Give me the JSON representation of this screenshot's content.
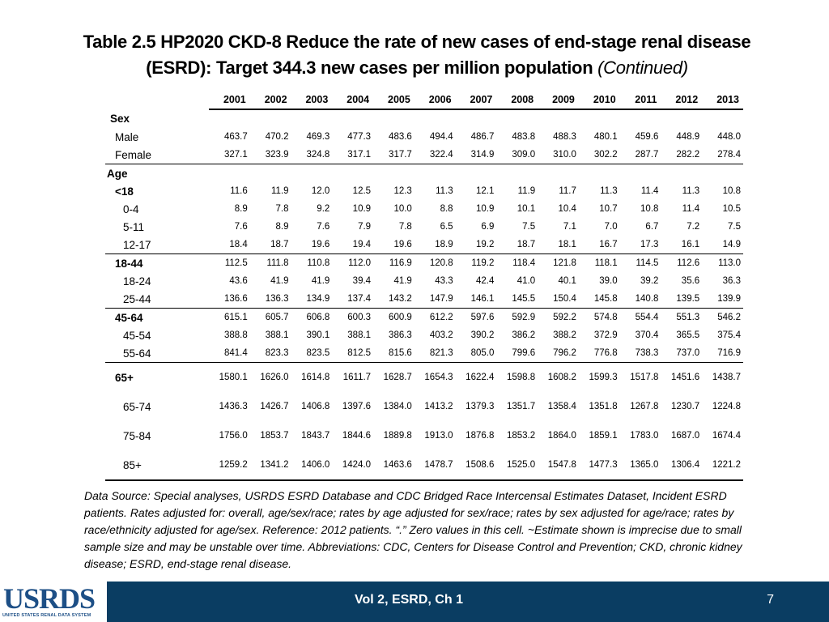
{
  "title": {
    "line1": "Table 2.5  HP2020 CKD-8 Reduce the rate of new cases of end-stage renal disease",
    "line2": "(ESRD): Target 344.3 new cases per million population",
    "continued": "(Continued)"
  },
  "table": {
    "years": [
      "2001",
      "2002",
      "2003",
      "2004",
      "2005",
      "2006",
      "2007",
      "2008",
      "2009",
      "2010",
      "2011",
      "2012",
      "2013"
    ],
    "rows": [
      {
        "label": "Sex",
        "values": []
      },
      {
        "label": "Male",
        "values": [
          "463.7",
          "470.2",
          "469.3",
          "477.3",
          "483.6",
          "494.4",
          "486.7",
          "483.8",
          "488.3",
          "480.1",
          "459.6",
          "448.9",
          "448.0"
        ]
      },
      {
        "label": "Female",
        "values": [
          "327.1",
          "323.9",
          "324.8",
          "317.1",
          "317.7",
          "322.4",
          "314.9",
          "309.0",
          "310.0",
          "302.2",
          "287.7",
          "282.2",
          "278.4"
        ]
      },
      {
        "label": "Age",
        "values": []
      },
      {
        "label": "<18",
        "values": [
          "11.6",
          "11.9",
          "12.0",
          "12.5",
          "12.3",
          "11.3",
          "12.1",
          "11.9",
          "11.7",
          "11.3",
          "11.4",
          "11.3",
          "10.8"
        ]
      },
      {
        "label": "0-4",
        "values": [
          "8.9",
          "7.8",
          "9.2",
          "10.9",
          "10.0",
          "8.8",
          "10.9",
          "10.1",
          "10.4",
          "10.7",
          "10.8",
          "11.4",
          "10.5"
        ]
      },
      {
        "label": "5-11",
        "values": [
          "7.6",
          "8.9",
          "7.6",
          "7.9",
          "7.8",
          "6.5",
          "6.9",
          "7.5",
          "7.1",
          "7.0",
          "6.7",
          "7.2",
          "7.5"
        ]
      },
      {
        "label": "12-17",
        "values": [
          "18.4",
          "18.7",
          "19.6",
          "19.4",
          "19.6",
          "18.9",
          "19.2",
          "18.7",
          "18.1",
          "16.7",
          "17.3",
          "16.1",
          "14.9"
        ]
      },
      {
        "label": "18-44",
        "values": [
          "112.5",
          "111.8",
          "110.8",
          "112.0",
          "116.9",
          "120.8",
          "119.2",
          "118.4",
          "121.8",
          "118.1",
          "114.5",
          "112.6",
          "113.0"
        ]
      },
      {
        "label": "18-24",
        "values": [
          "43.6",
          "41.9",
          "41.9",
          "39.4",
          "41.9",
          "43.3",
          "42.4",
          "41.0",
          "40.1",
          "39.0",
          "39.2",
          "35.6",
          "36.3"
        ]
      },
      {
        "label": "25-44",
        "values": [
          "136.6",
          "136.3",
          "134.9",
          "137.4",
          "143.2",
          "147.9",
          "146.1",
          "145.5",
          "150.4",
          "145.8",
          "140.8",
          "139.5",
          "139.9"
        ]
      },
      {
        "label": "45-64",
        "values": [
          "615.1",
          "605.7",
          "606.8",
          "600.3",
          "600.9",
          "612.2",
          "597.6",
          "592.9",
          "592.2",
          "574.8",
          "554.4",
          "551.3",
          "546.2"
        ]
      },
      {
        "label": "45-54",
        "values": [
          "388.8",
          "388.1",
          "390.1",
          "388.1",
          "386.3",
          "403.2",
          "390.2",
          "386.2",
          "388.2",
          "372.9",
          "370.4",
          "365.5",
          "375.4"
        ]
      },
      {
        "label": "55-64",
        "values": [
          "841.4",
          "823.3",
          "823.5",
          "812.5",
          "815.6",
          "821.3",
          "805.0",
          "799.6",
          "796.2",
          "776.8",
          "738.3",
          "737.0",
          "716.9"
        ]
      },
      {
        "label": "65+",
        "values": [
          "1580.1",
          "1626.0",
          "1614.8",
          "1611.7",
          "1628.7",
          "1654.3",
          "1622.4",
          "1598.8",
          "1608.2",
          "1599.3",
          "1517.8",
          "1451.6",
          "1438.7"
        ]
      },
      {
        "label": "65-74",
        "values": [
          "1436.3",
          "1426.7",
          "1406.8",
          "1397.6",
          "1384.0",
          "1413.2",
          "1379.3",
          "1351.7",
          "1358.4",
          "1351.8",
          "1267.8",
          "1230.7",
          "1224.8"
        ]
      },
      {
        "label": "75-84",
        "values": [
          "1756.0",
          "1853.7",
          "1843.7",
          "1844.6",
          "1889.8",
          "1913.0",
          "1876.8",
          "1853.2",
          "1864.0",
          "1859.1",
          "1783.0",
          "1687.0",
          "1674.4"
        ]
      },
      {
        "label": "85+",
        "values": [
          "1259.2",
          "1341.2",
          "1406.0",
          "1424.0",
          "1463.6",
          "1478.7",
          "1508.6",
          "1525.0",
          "1547.8",
          "1477.3",
          "1365.0",
          "1306.4",
          "1221.2"
        ]
      }
    ]
  },
  "footnote": "Data Source: Special analyses, USRDS ESRD Database and CDC Bridged Race Intercensal Estimates Dataset, Incident ESRD patients. Rates adjusted for: overall, age/sex/race; rates by age adjusted for sex/race; rates by sex adjusted for age/race; rates by race/ethnicity adjusted for age/sex. Reference: 2012 patients. “.” Zero values in this cell. ~Estimate shown is imprecise due to small sample size and may be unstable over time. Abbreviations: CDC, Centers for Disease Control and Prevention; CKD, chronic kidney disease; ESRD, end-stage renal disease.",
  "footer": {
    "logo_text": "USRDS",
    "logo_subtext": "UNITED STATES RENAL DATA SYSTEM",
    "center": "Vol 2, ESRD, Ch 1",
    "page": "7"
  },
  "colors": {
    "footer_bg": "#0a3d62",
    "logo": "#1d4f86"
  }
}
